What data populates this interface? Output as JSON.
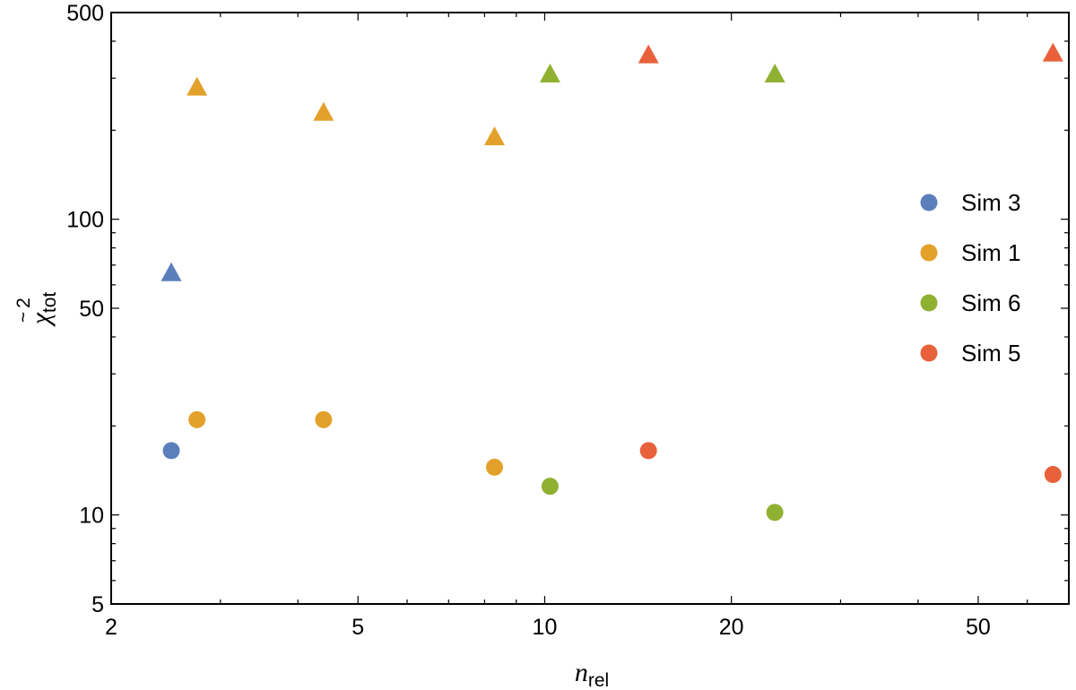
{
  "chart_data": {
    "type": "scatter",
    "title": "",
    "xlabel": {
      "main": "n",
      "sub": "rel"
    },
    "ylabel": {
      "main": "χ",
      "sup": "2",
      "sub": "tot",
      "accent": "~"
    },
    "xscale": "log",
    "yscale": "log",
    "xlim": [
      2,
      70
    ],
    "ylim": [
      5,
      500
    ],
    "xticks": [
      2,
      5,
      10,
      20,
      50
    ],
    "yticks": [
      5,
      10,
      50,
      100,
      500
    ],
    "grid": false,
    "legend_position": "right",
    "marker_legend": "circle",
    "series": [
      {
        "name": "Sim 3",
        "color": "#5b7fba",
        "circles": [
          {
            "x": 2.5,
            "y": 16.5
          }
        ],
        "triangles": [
          {
            "x": 2.5,
            "y": 66
          }
        ]
      },
      {
        "name": "Sim 1",
        "color": "#e3a12b",
        "circles": [
          {
            "x": 2.75,
            "y": 21
          },
          {
            "x": 4.4,
            "y": 21
          },
          {
            "x": 8.3,
            "y": 14.5
          }
        ],
        "triangles": [
          {
            "x": 2.75,
            "y": 280
          },
          {
            "x": 4.4,
            "y": 230
          },
          {
            "x": 8.3,
            "y": 190
          }
        ]
      },
      {
        "name": "Sim 6",
        "color": "#8fb132",
        "circles": [
          {
            "x": 10.2,
            "y": 12.5
          },
          {
            "x": 23.5,
            "y": 10.2
          }
        ],
        "triangles": [
          {
            "x": 10.2,
            "y": 310
          },
          {
            "x": 23.5,
            "y": 310
          }
        ]
      },
      {
        "name": "Sim 5",
        "color": "#e8613a",
        "circles": [
          {
            "x": 14.7,
            "y": 16.5
          },
          {
            "x": 66,
            "y": 13.7
          }
        ],
        "triangles": [
          {
            "x": 14.7,
            "y": 360
          },
          {
            "x": 66,
            "y": 365
          }
        ]
      }
    ]
  }
}
